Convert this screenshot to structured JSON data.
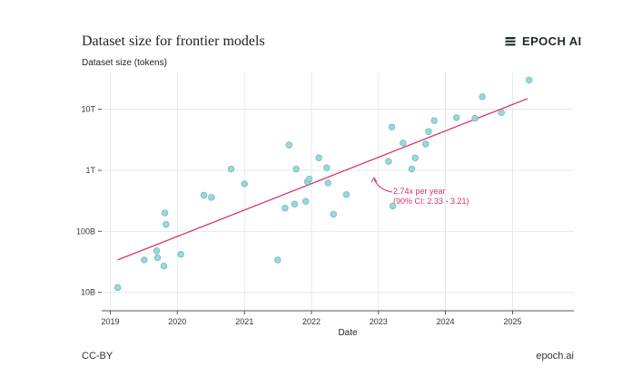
{
  "header": {
    "title": "Dataset size for frontier models",
    "logo_text": "EPOCH AI",
    "logo_icon": "epoch-logo-icon"
  },
  "footer": {
    "license": "CC-BY",
    "site": "epoch.ai"
  },
  "colors": {
    "points": "#9ad8dc",
    "point_stroke": "#6fb8bd",
    "trend": "#d6336c",
    "grid": "#e6e8ea",
    "axis": "#555555"
  },
  "chart_data": {
    "type": "scatter",
    "title": "Dataset size for frontier models",
    "xlabel": "Date",
    "ylabel": "Dataset size (tokens)",
    "y_scale": "log",
    "grid": true,
    "xlim": [
      "2018-11-15",
      "2025-12-01"
    ],
    "ylim": [
      5000000000.0,
      40000000000000.0
    ],
    "x_ticks": [
      "2019",
      "2020",
      "2021",
      "2022",
      "2023",
      "2024",
      "2025"
    ],
    "y_ticks": [
      {
        "value": 10000000000.0,
        "label": "10B"
      },
      {
        "value": 100000000000.0,
        "label": "100B"
      },
      {
        "value": 1000000000000.0,
        "label": "1T"
      },
      {
        "value": 10000000000000.0,
        "label": "10T"
      }
    ],
    "points": [
      {
        "x": "2019-02-10",
        "y": 12000000000.0
      },
      {
        "x": "2019-07-05",
        "y": 34000000000.0
      },
      {
        "x": "2019-09-10",
        "y": 48000000000.0
      },
      {
        "x": "2019-09-15",
        "y": 37000000000.0
      },
      {
        "x": "2019-10-20",
        "y": 27000000000.0
      },
      {
        "x": "2019-10-25",
        "y": 200000000000.0
      },
      {
        "x": "2019-11-01",
        "y": 130000000000.0
      },
      {
        "x": "2020-01-20",
        "y": 42000000000.0
      },
      {
        "x": "2020-05-25",
        "y": 390000000000.0
      },
      {
        "x": "2020-07-05",
        "y": 360000000000.0
      },
      {
        "x": "2020-10-20",
        "y": 1050000000000.0
      },
      {
        "x": "2021-01-01",
        "y": 600000000000.0
      },
      {
        "x": "2021-07-01",
        "y": 34000000000.0
      },
      {
        "x": "2021-08-10",
        "y": 240000000000.0
      },
      {
        "x": "2021-09-01",
        "y": 2600000000000.0
      },
      {
        "x": "2021-10-01",
        "y": 280000000000.0
      },
      {
        "x": "2021-10-10",
        "y": 1050000000000.0
      },
      {
        "x": "2021-12-01",
        "y": 310000000000.0
      },
      {
        "x": "2021-12-10",
        "y": 650000000000.0
      },
      {
        "x": "2021-12-20",
        "y": 720000000000.0
      },
      {
        "x": "2022-02-10",
        "y": 1600000000000.0
      },
      {
        "x": "2022-03-25",
        "y": 1100000000000.0
      },
      {
        "x": "2022-04-01",
        "y": 620000000000.0
      },
      {
        "x": "2022-05-01",
        "y": 190000000000.0
      },
      {
        "x": "2022-07-10",
        "y": 400000000000.0
      },
      {
        "x": "2023-02-25",
        "y": 1400000000000.0
      },
      {
        "x": "2023-03-15",
        "y": 5100000000000.0
      },
      {
        "x": "2023-03-20",
        "y": 260000000000.0
      },
      {
        "x": "2023-05-15",
        "y": 2800000000000.0
      },
      {
        "x": "2023-07-01",
        "y": 1050000000000.0
      },
      {
        "x": "2023-07-20",
        "y": 1600000000000.0
      },
      {
        "x": "2023-09-15",
        "y": 2700000000000.0
      },
      {
        "x": "2023-10-01",
        "y": 4300000000000.0
      },
      {
        "x": "2023-11-01",
        "y": 6500000000000.0
      },
      {
        "x": "2024-03-01",
        "y": 7300000000000.0
      },
      {
        "x": "2024-06-10",
        "y": 7100000000000.0
      },
      {
        "x": "2024-07-20",
        "y": 16000000000000.0
      },
      {
        "x": "2024-11-01",
        "y": 8800000000000.0
      },
      {
        "x": "2025-04-01",
        "y": 30000000000000.0
      }
    ],
    "trendline": {
      "start": {
        "x": "2019-02-10",
        "y": 34000000000.0
      },
      "end": {
        "x": "2025-03-25",
        "y": 15000000000000.0
      },
      "label_line1": "2.74x per year",
      "label_line2": "(90% CI: 2.33 - 3.21)"
    }
  }
}
